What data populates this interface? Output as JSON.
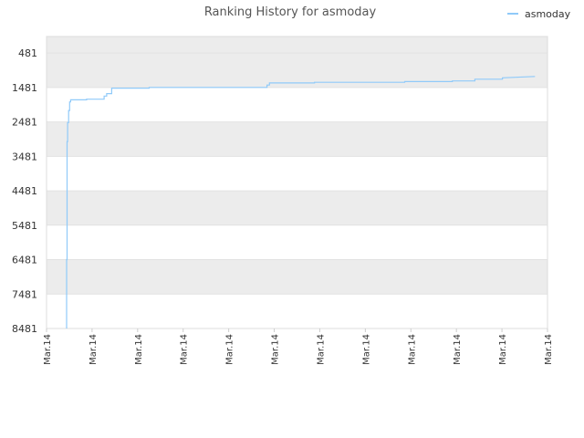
{
  "chart_data": {
    "type": "line",
    "title": "Ranking History for asmoday",
    "y_inverted": true,
    "ylim": [
      481,
      8481
    ],
    "y_ticks": [
      481,
      1481,
      2481,
      3481,
      4481,
      5481,
      6481,
      7481,
      8481
    ],
    "y_tick_labels": [
      "481",
      "1481",
      "2481",
      "3481",
      "4481",
      "5481",
      "6481",
      "7481",
      "8481"
    ],
    "x_tick_labels": [
      "Mar.14",
      "Mar.14",
      "Mar.14",
      "Mar.14",
      "Mar.14",
      "Mar.14",
      "Mar.14",
      "Mar.14",
      "Mar.14",
      "Mar.14",
      "Mar.14",
      "Mar.14"
    ],
    "grid": true,
    "legend_position": "top-right",
    "colors": {
      "series": "#90caf9",
      "band_a": "#f2f2f2",
      "band_b": "#ffffff",
      "band_top": "#ececec",
      "border": "#dddddd"
    },
    "series": [
      {
        "name": "asmoday",
        "x": [
          0.04,
          0.04,
          0.041,
          0.041,
          0.042,
          0.042,
          0.044,
          0.044,
          0.046,
          0.046,
          0.048,
          0.048,
          0.08,
          0.08,
          0.115,
          0.115,
          0.12,
          0.12,
          0.13,
          0.13,
          0.135,
          0.135,
          0.205,
          0.205,
          0.44,
          0.44,
          0.445,
          0.445,
          0.535,
          0.535,
          0.715,
          0.715,
          0.81,
          0.81,
          0.855,
          0.855,
          0.91,
          0.91,
          0.975
        ],
        "y": [
          8481,
          6480,
          6480,
          3050,
          3050,
          2500,
          2500,
          2150,
          2150,
          1900,
          1900,
          1840,
          1840,
          1820,
          1820,
          1730,
          1730,
          1660,
          1660,
          1500,
          1500,
          1500,
          1500,
          1480,
          1480,
          1410,
          1410,
          1350,
          1350,
          1330,
          1330,
          1310,
          1310,
          1290,
          1290,
          1240,
          1240,
          1200,
          1160
        ]
      }
    ]
  }
}
